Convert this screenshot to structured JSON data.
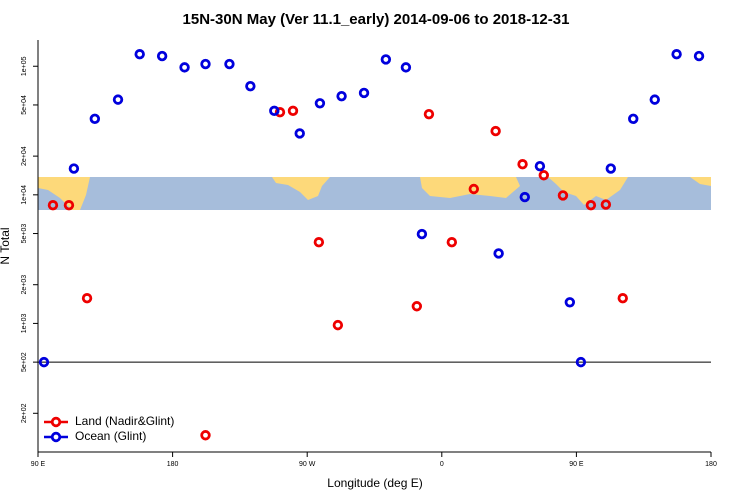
{
  "chart_data": {
    "type": "scatter",
    "title": "15N-30N May (Ver 11.1_early)   2014-09-06 to 2018-12-31",
    "x_label": "Longitude (deg E)",
    "y_label": "N Total",
    "log_y": true,
    "legend": "bottom-left",
    "xlim": [
      90,
      540
    ],
    "ylim": [
      100,
      160000
    ],
    "xticks": [
      {
        "value": 90,
        "label": "90 E"
      },
      {
        "value": 180,
        "label": "180"
      },
      {
        "value": 270,
        "label": "90 W"
      },
      {
        "value": 360,
        "label": "0"
      },
      {
        "value": 450,
        "label": "90 E"
      },
      {
        "value": 540,
        "label": "180"
      }
    ],
    "yticks": [
      {
        "value": 200,
        "label": "2e+02"
      },
      {
        "value": 500,
        "label": "5e+02"
      },
      {
        "value": 1000,
        "label": "1e+03"
      },
      {
        "value": 2000,
        "label": "2e+03"
      },
      {
        "value": 5000,
        "label": "5e+03"
      },
      {
        "value": 10000,
        "label": "1e+04"
      },
      {
        "value": 20000,
        "label": "2e+04"
      },
      {
        "value": 50000,
        "label": "5e+04"
      },
      {
        "value": 100000,
        "label": "1e+05"
      }
    ],
    "reference_line": 500,
    "series": [
      {
        "name": "Land (Nadir&Glint)",
        "color": "#ee0000",
        "x": [
          100,
          110.7,
          122.8,
          202,
          251.8,
          260.5,
          277.8,
          290.5,
          343.3,
          351.4,
          366.7,
          381.4,
          396,
          414,
          428.2,
          441,
          459.7,
          469.7,
          481
        ],
        "values": [
          8300,
          8300,
          1570,
          135,
          43900,
          45000,
          4280,
          970,
          1360,
          42400,
          4280,
          11100,
          31300,
          17300,
          14200,
          9900,
          8300,
          8400,
          1570
        ]
      },
      {
        "name": "Ocean (Glint)",
        "color": "#0000dd",
        "x": [
          94,
          114,
          128,
          143.5,
          158,
          173,
          188,
          202,
          218,
          232,
          248,
          265,
          278.5,
          293,
          308,
          322.6,
          336,
          346.7,
          398,
          415.5,
          425.6,
          445.6,
          453,
          473,
          488,
          502.4,
          517,
          532
        ],
        "values": [
          500,
          16000,
          39000,
          55000,
          124000,
          120000,
          98000,
          104000,
          104000,
          70000,
          45000,
          30000,
          51500,
          58500,
          62000,
          113000,
          98000,
          4950,
          3500,
          9600,
          16700,
          1460,
          500,
          16000,
          39000,
          55000,
          124000,
          120000
        ]
      }
    ]
  }
}
